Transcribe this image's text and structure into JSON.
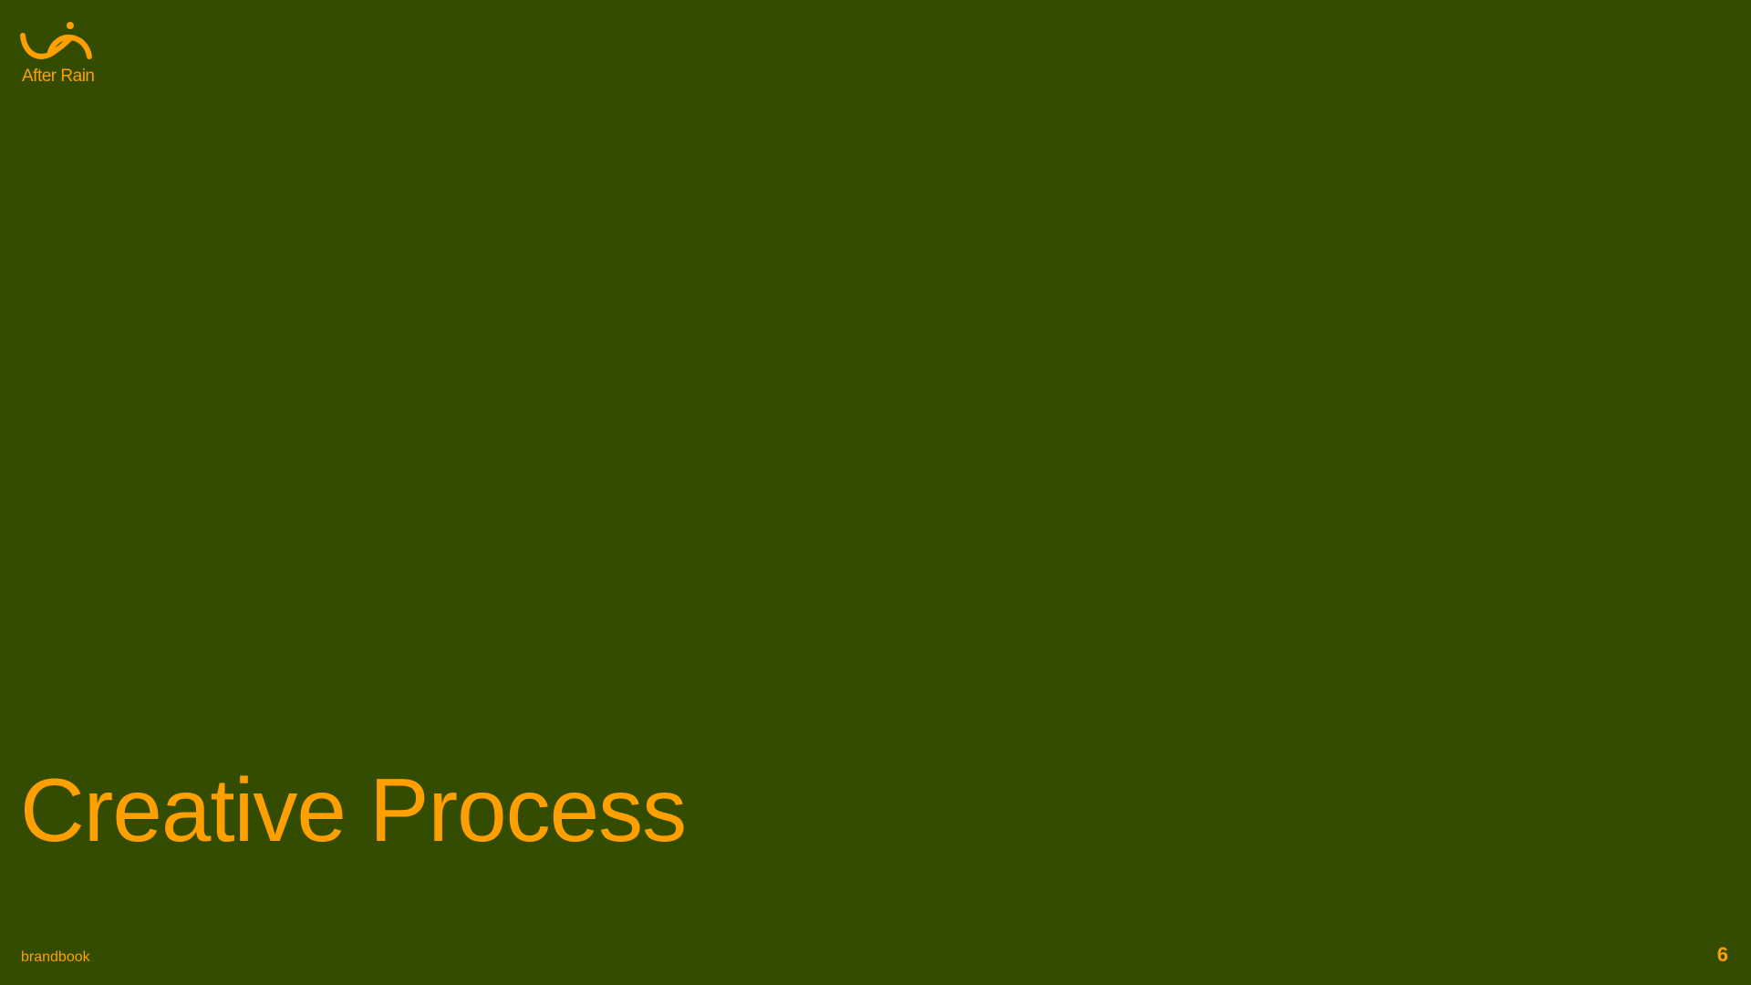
{
  "colors": {
    "background": "#344c00",
    "accent": "#ff9f00"
  },
  "brand": {
    "logo_icon": "after-rain-logo-icon",
    "name": "After Rain"
  },
  "slide": {
    "title": "Creative Process"
  },
  "footer": {
    "label": "brandbook",
    "page_number": "6"
  }
}
